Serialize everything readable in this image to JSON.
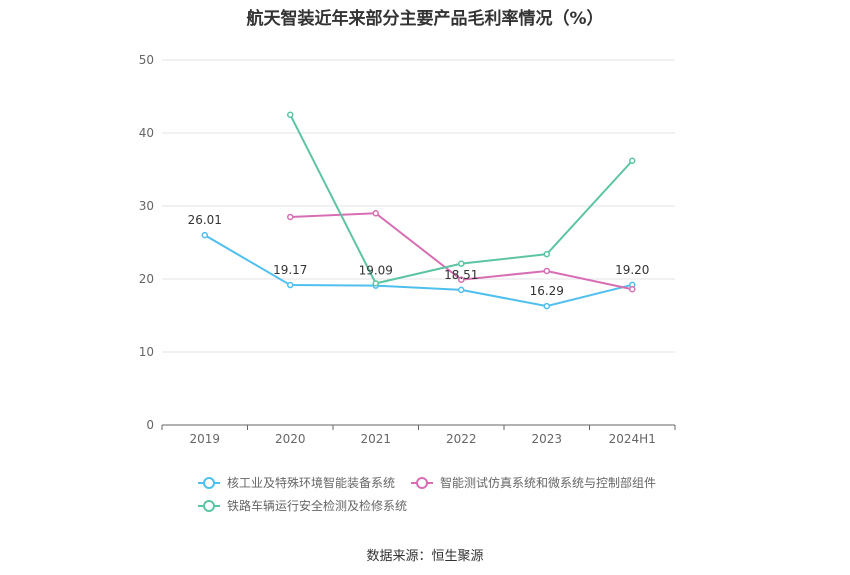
{
  "title": "航天智装近年来部分主要产品毛利率情况（%）",
  "source": "数据来源：恒生聚源",
  "chart_data": {
    "type": "line",
    "title": "航天智装近年来部分主要产品毛利率情况（%）",
    "categories": [
      "2019",
      "2020",
      "2021",
      "2022",
      "2023",
      "2024H1"
    ],
    "ylim": [
      0,
      50
    ],
    "yticks": [
      0,
      10,
      20,
      30,
      40,
      50
    ],
    "grid": true,
    "legend_position": "bottom",
    "series": [
      {
        "name": "核工业及特殊环境智能装备系统",
        "color": "#4fbfee",
        "values": [
          26.01,
          19.17,
          19.09,
          18.51,
          16.29,
          19.2
        ],
        "labels": [
          "26.01",
          "19.17",
          "19.09",
          "18.51",
          "16.29",
          "19.20"
        ]
      },
      {
        "name": "智能测试仿真系统和微系统与控制部组件",
        "color": "#d76eb4",
        "values": [
          null,
          28.5,
          29.0,
          19.9,
          21.1,
          18.6
        ],
        "labels": [
          null,
          null,
          null,
          null,
          null,
          null
        ]
      },
      {
        "name": "铁路车辆运行安全检测及检修系统",
        "color": "#5cc4a4",
        "values": [
          null,
          42.5,
          19.4,
          22.1,
          23.4,
          36.2
        ],
        "labels": [
          null,
          null,
          null,
          null,
          null,
          null
        ]
      }
    ]
  }
}
